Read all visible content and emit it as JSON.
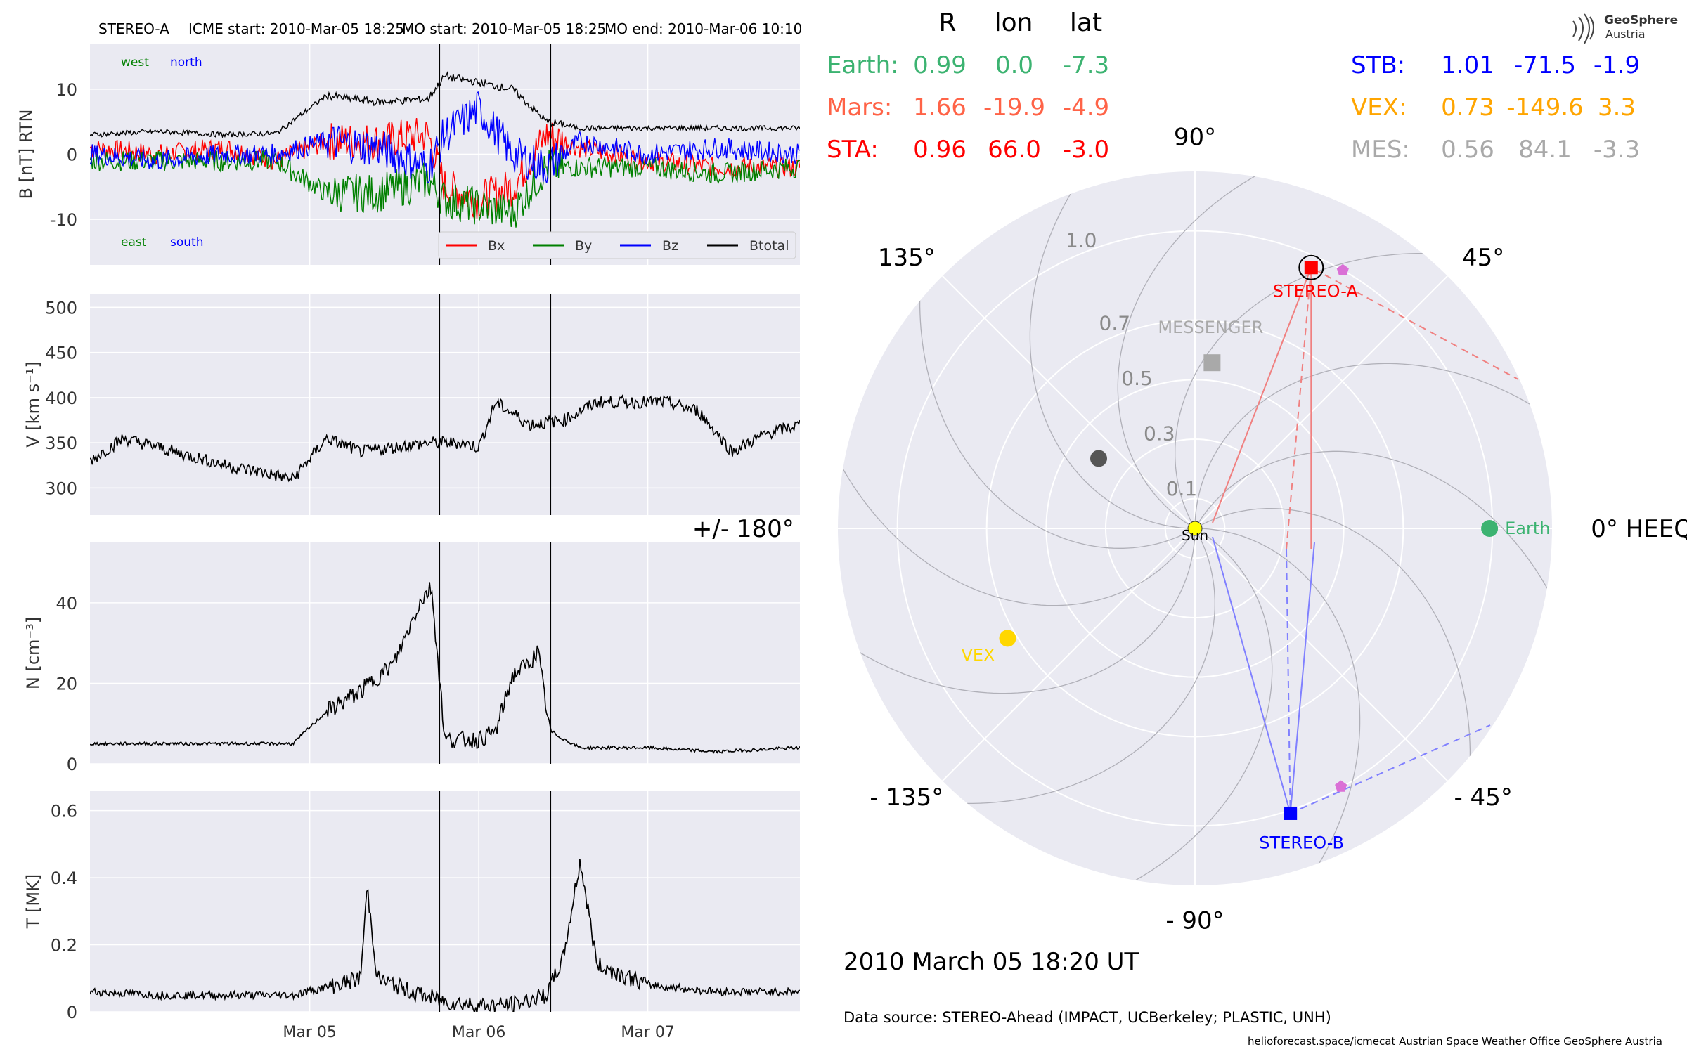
{
  "header": {
    "spacecraft": "STEREO-A",
    "icme_start": "ICME start: 2010-Mar-05 18:25",
    "mo_start": "MO start: 2010-Mar-05 18:25",
    "mo_end": "MO end: 2010-Mar-06 10:10"
  },
  "logo": {
    "line1": "GeoSphere",
    "line2": "Austria"
  },
  "position_table": {
    "headers": [
      "R",
      "lon",
      "lat"
    ],
    "left_rows": [
      {
        "name": "Earth:",
        "R": "0.99",
        "lon": "0.0",
        "lat": "-7.3",
        "color": "#3cb371"
      },
      {
        "name": "Mars:",
        "R": "1.66",
        "lon": "-19.9",
        "lat": "-4.9",
        "color": "#ff6347"
      },
      {
        "name": "STA:",
        "R": "0.96",
        "lon": "66.0",
        "lat": "-3.0",
        "color": "#ff0000"
      }
    ],
    "right_rows": [
      {
        "name": "STB:",
        "R": "1.01",
        "lon": "-71.5",
        "lat": "-1.9",
        "color": "#0000ff"
      },
      {
        "name": "VEX:",
        "R": "0.73",
        "lon": "-149.6",
        "lat": "3.3",
        "color": "#ffa500"
      },
      {
        "name": "MES:",
        "R": "0.56",
        "lon": "84.1",
        "lat": "-3.3",
        "color": "#a9a9a9"
      }
    ]
  },
  "footer": {
    "datetime": "2010 March 05  18:20 UT",
    "data_source": "Data source: STEREO-Ahead (IMPACT, UCBerkeley; PLASTIC, UNH)",
    "credits": "helioforecast.space/icmecat   Austrian Space Weather Office   GeoSphere Austria"
  },
  "chart_data": [
    {
      "type": "line",
      "panel": "magnetic field",
      "ylabel": "B [nT] RTN",
      "ylim": [
        -17,
        17
      ],
      "yticks": [
        -10,
        0,
        10
      ],
      "xlim": [
        -1.3,
        2.9
      ],
      "x_unit": "days relative to 2010-03-05 00:00",
      "xticks": [
        {
          "x": 0,
          "label": "Mar 05"
        },
        {
          "x": 1,
          "label": "Mar 06"
        },
        {
          "x": 2,
          "label": "Mar 07"
        }
      ],
      "annotations": {
        "top_left": "west",
        "top_right": "north",
        "bottom_left": "east",
        "bottom_right": "south",
        "top_left_color": "#008000",
        "top_right_color": "#0000ff"
      },
      "legend": [
        "Bx",
        "By",
        "Bz",
        "Btotal"
      ],
      "legend_position": "lower-right",
      "vlines": [
        0.767,
        1.424
      ],
      "series": [
        {
          "name": "Bx",
          "color": "#ff0000",
          "x": [
            -1.3,
            -0.9,
            -0.5,
            -0.2,
            0.1,
            0.4,
            0.7,
            0.8,
            1.0,
            1.2,
            1.4,
            1.6,
            2.0,
            2.4,
            2.9
          ],
          "values": [
            1,
            0,
            1,
            -1,
            2,
            2,
            3,
            -5,
            -7,
            -5,
            3,
            1,
            -1,
            -2,
            -2
          ]
        },
        {
          "name": "By",
          "color": "#008000",
          "x": [
            -1.3,
            -0.9,
            -0.5,
            -0.2,
            0.1,
            0.4,
            0.7,
            0.8,
            1.0,
            1.2,
            1.4,
            1.6,
            2.0,
            2.4,
            2.9
          ],
          "values": [
            -1,
            -1,
            -1,
            -1,
            -6,
            -6,
            -4,
            -7,
            -8,
            -9,
            -2,
            -2,
            -2,
            -3,
            -2
          ]
        },
        {
          "name": "Bz",
          "color": "#0000ff",
          "x": [
            -1.3,
            -0.9,
            -0.5,
            -0.2,
            0.1,
            0.4,
            0.7,
            0.8,
            1.0,
            1.2,
            1.4,
            1.6,
            2.0,
            2.4,
            2.9
          ],
          "values": [
            0,
            -1,
            0,
            0,
            2,
            1,
            -2,
            3,
            7,
            0,
            -2,
            2,
            0,
            1,
            0
          ]
        },
        {
          "name": "Btotal",
          "color": "#000000",
          "x": [
            -1.3,
            -0.9,
            -0.5,
            -0.2,
            0.1,
            0.4,
            0.7,
            0.8,
            1.0,
            1.2,
            1.4,
            1.6,
            2.0,
            2.4,
            2.9
          ],
          "values": [
            3,
            3.5,
            3,
            3.2,
            9,
            8,
            8.5,
            12,
            11,
            10,
            5,
            4,
            4,
            4,
            4
          ]
        }
      ]
    },
    {
      "type": "line",
      "panel": "speed",
      "ylabel": "V [km s^-1]",
      "ylim": [
        270,
        515
      ],
      "yticks": [
        300,
        350,
        400,
        450,
        500
      ],
      "xlim": [
        -1.3,
        2.9
      ],
      "xticks": [
        {
          "x": 0,
          "label": "Mar 05"
        },
        {
          "x": 1,
          "label": "Mar 06"
        },
        {
          "x": 2,
          "label": "Mar 07"
        }
      ],
      "vlines": [
        0.767,
        1.424
      ],
      "series": [
        {
          "name": "V",
          "color": "#000000",
          "x": [
            -1.3,
            -1.1,
            -0.9,
            -0.7,
            -0.5,
            -0.3,
            -0.1,
            0.1,
            0.3,
            0.5,
            0.7,
            0.9,
            1.0,
            1.1,
            1.3,
            1.5,
            1.7,
            1.9,
            2.1,
            2.3,
            2.5,
            2.7,
            2.9
          ],
          "values": [
            330,
            355,
            345,
            335,
            325,
            318,
            310,
            355,
            340,
            345,
            350,
            350,
            345,
            395,
            370,
            375,
            395,
            395,
            395,
            385,
            340,
            360,
            370
          ]
        }
      ]
    },
    {
      "type": "line",
      "panel": "density",
      "ylabel": "N [cm^-3]",
      "ylim": [
        0,
        55
      ],
      "yticks": [
        0,
        20,
        40
      ],
      "xlim": [
        -1.3,
        2.9
      ],
      "xticks": [
        {
          "x": 0,
          "label": "Mar 05"
        },
        {
          "x": 1,
          "label": "Mar 06"
        },
        {
          "x": 2,
          "label": "Mar 07"
        }
      ],
      "vlines": [
        0.767,
        1.424
      ],
      "series": [
        {
          "name": "N",
          "color": "#000000",
          "x": [
            -1.3,
            -0.9,
            -0.5,
            -0.1,
            0.1,
            0.3,
            0.5,
            0.65,
            0.72,
            0.8,
            1.0,
            1.1,
            1.2,
            1.3,
            1.35,
            1.42,
            1.6,
            2.0,
            2.4,
            2.9
          ],
          "values": [
            5,
            5,
            5,
            5,
            13,
            18,
            25,
            40,
            44,
            6,
            6,
            8,
            22,
            25,
            28,
            8,
            4,
            4,
            3,
            4
          ]
        }
      ]
    },
    {
      "type": "line",
      "panel": "temperature",
      "ylabel": "T [MK]",
      "ylim": [
        0,
        0.66
      ],
      "yticks": [
        0.0,
        0.2,
        0.4,
        0.6
      ],
      "xlim": [
        -1.3,
        2.9
      ],
      "xticks": [
        {
          "x": 0,
          "label": "Mar 05"
        },
        {
          "x": 1,
          "label": "Mar 06"
        },
        {
          "x": 2,
          "label": "Mar 07"
        }
      ],
      "vlines": [
        0.767,
        1.424
      ],
      "series": [
        {
          "name": "T",
          "color": "#000000",
          "x": [
            -1.3,
            -0.9,
            -0.5,
            -0.1,
            0.15,
            0.3,
            0.34,
            0.4,
            0.6,
            0.8,
            1.0,
            1.2,
            1.4,
            1.5,
            1.6,
            1.7,
            2.0,
            2.4,
            2.9
          ],
          "values": [
            0.06,
            0.05,
            0.05,
            0.05,
            0.08,
            0.1,
            0.37,
            0.1,
            0.06,
            0.03,
            0.02,
            0.02,
            0.05,
            0.16,
            0.45,
            0.14,
            0.08,
            0.06,
            0.06
          ]
        }
      ]
    },
    {
      "type": "scatter",
      "panel": "polar position plot",
      "projection": "polar",
      "angle_labels": [
        "90°",
        "45°",
        "0° HEEQ",
        "- 45°",
        "- 90°",
        "- 135°",
        "+/- 180°",
        "135°"
      ],
      "radial_ticks": [
        "0.1",
        "0.3",
        "0.5",
        "0.7",
        "1.0"
      ],
      "radial_tick_values": [
        0.1,
        0.3,
        0.5,
        0.7,
        1.0
      ],
      "rlim": [
        0,
        1.2
      ],
      "objects": [
        {
          "name": "Sun",
          "r": 0.0,
          "lon": 0,
          "color": "#ffff00",
          "label": "Sun"
        },
        {
          "name": "Earth",
          "r": 0.99,
          "lon": 0.0,
          "color": "#3cb371",
          "label": "Earth"
        },
        {
          "name": "STEREO-A",
          "r": 0.96,
          "lon": 66.0,
          "color": "#ff0000",
          "label": "STEREO-A"
        },
        {
          "name": "STEREO-B",
          "r": 1.01,
          "lon": -71.5,
          "color": "#0000ff",
          "label": "STEREO-B"
        },
        {
          "name": "VEX",
          "r": 0.73,
          "lon": -149.6,
          "color": "#ffd700",
          "label": "VEX"
        },
        {
          "name": "MESSENGER",
          "r": 0.56,
          "lon": 84.1,
          "color": "#a9a9a9",
          "label": "MESSENGER"
        },
        {
          "name": "Mercury",
          "r": 0.4,
          "lon": 144,
          "color": "#555555",
          "label": ""
        }
      ]
    }
  ]
}
